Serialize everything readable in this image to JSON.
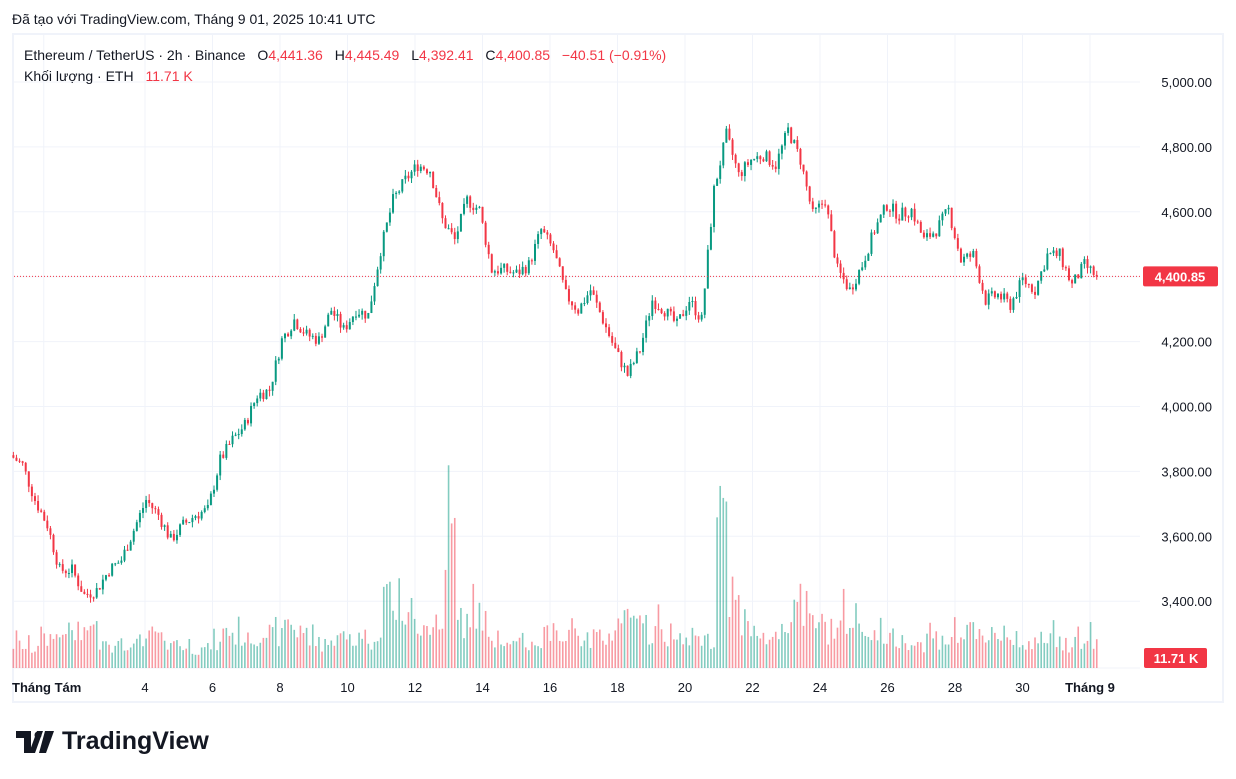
{
  "caption": "Đã tạo với TradingView.com, Tháng 9 01, 2025 10:41 UTC",
  "legend": {
    "symbol": "Ethereum / TetherUS · 2h · Binance",
    "o_label": "O",
    "o": "4,441.36",
    "h_label": "H",
    "h": "4,445.49",
    "l_label": "L",
    "l": "4,392.41",
    "c_label": "C",
    "c": "4,400.85",
    "change": "−40.51 (−0.91%)",
    "volume_label": "Khối lượng · ETH",
    "volume": "11.71 K"
  },
  "logo": "TradingView",
  "colors": {
    "up": "#089981",
    "down": "#f23645",
    "grid": "#f0f3fa"
  },
  "chart_data": {
    "type": "candlestick",
    "title": "Ethereum / TetherUS · 2h · Binance",
    "ylim": [
      3350,
      5050
    ],
    "y_ticks": [
      "5,000.00",
      "4,800.00",
      "4,600.00",
      "4,400.00",
      "4,200.00",
      "4,000.00",
      "3,800.00",
      "3,600.00",
      "3,400.00"
    ],
    "y_tick_values": [
      5000,
      4800,
      4600,
      4400,
      4200,
      4000,
      3800,
      3600,
      3400
    ],
    "x_ticks": [
      "Tháng Tám",
      "4",
      "6",
      "8",
      "10",
      "12",
      "14",
      "16",
      "18",
      "20",
      "22",
      "24",
      "26",
      "28",
      "30",
      "Tháng 9"
    ],
    "x_tick_days": [
      1,
      4,
      6,
      8,
      10,
      12,
      14,
      16,
      18,
      20,
      22,
      24,
      26,
      28,
      30,
      32
    ],
    "start_day": 0.1,
    "end_day": 32.2,
    "price_path_closes": [
      3850,
      3820,
      3712,
      3635,
      3496,
      3496,
      3419,
      3434,
      3496,
      3527,
      3619,
      3712,
      3666,
      3589,
      3635,
      3666,
      3681,
      3835,
      3897,
      3943,
      4035,
      4051,
      4205,
      4267,
      4221,
      4205,
      4297,
      4236,
      4297,
      4282,
      4482,
      4636,
      4698,
      4744,
      4729,
      4575,
      4513,
      4636,
      4606,
      4421,
      4421,
      4410,
      4436,
      4544,
      4482,
      4344,
      4297,
      4359,
      4267,
      4174,
      4097,
      4174,
      4328,
      4297,
      4251,
      4328,
      4267,
      4667,
      4837,
      4713,
      4760,
      4775,
      4744,
      4852,
      4760,
      4590,
      4636,
      4421,
      4359,
      4436,
      4544,
      4621,
      4590,
      4606,
      4513,
      4544,
      4606,
      4451,
      4467,
      4328,
      4344,
      4313,
      4390,
      4359,
      4467,
      4467,
      4374,
      4436,
      4400.85
    ],
    "volume_k_path": [
      30,
      25,
      35,
      40,
      45,
      40,
      50,
      35,
      30,
      25,
      30,
      40,
      35,
      30,
      25,
      25,
      30,
      45,
      40,
      35,
      45,
      40,
      55,
      45,
      35,
      30,
      40,
      35,
      40,
      35,
      95,
      70,
      60,
      55,
      50,
      170,
      55,
      70,
      45,
      40,
      30,
      30,
      30,
      45,
      40,
      50,
      35,
      40,
      45,
      60,
      55,
      45,
      50,
      35,
      35,
      40,
      35,
      175,
      80,
      50,
      45,
      40,
      45,
      85,
      60,
      55,
      45,
      60,
      55,
      45,
      40,
      35,
      35,
      30,
      40,
      35,
      40,
      45,
      35,
      45,
      40,
      35,
      30,
      30,
      40,
      30,
      35,
      35,
      30
    ],
    "current_price": 4400.85,
    "current_price_label": "4,400.85",
    "current_volume_label": "11.71 K"
  }
}
